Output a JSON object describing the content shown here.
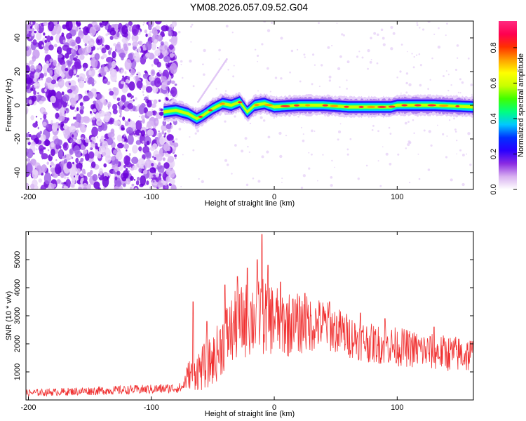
{
  "title": "YM08.2026.057.09.52.G04",
  "chart_data": [
    {
      "type": "heatmap",
      "name": "spectrogram",
      "xlabel": "Height of straight line (km)",
      "ylabel": "Frequency (Hz)",
      "xlim": [
        -202,
        162
      ],
      "ylim": [
        -50,
        50
      ],
      "xticks": [
        -200,
        -100,
        0,
        100
      ],
      "yticks": [
        -40,
        -20,
        0,
        20,
        40
      ],
      "ridge": [
        [
          -90,
          -4
        ],
        [
          -80,
          -3
        ],
        [
          -70,
          -5
        ],
        [
          -63,
          -8
        ],
        [
          -58,
          -6
        ],
        [
          -50,
          -2
        ],
        [
          -42,
          1
        ],
        [
          -35,
          0
        ],
        [
          -28,
          2
        ],
        [
          -22,
          -4
        ],
        [
          -16,
          0
        ],
        [
          -8,
          1
        ],
        [
          0,
          -1
        ],
        [
          20,
          0
        ],
        [
          40,
          0
        ],
        [
          60,
          -1
        ],
        [
          80,
          -1
        ],
        [
          95,
          -1
        ],
        [
          100,
          0
        ],
        [
          130,
          0
        ],
        [
          162,
          -1
        ]
      ],
      "colorbar": {
        "label": "Normalized spectral amplitude",
        "range": [
          0,
          0.95
        ],
        "ticks": [
          "0.0",
          "0.2",
          "0.4",
          "0.6",
          "0.8"
        ],
        "tick_values": [
          0,
          0.2,
          0.4,
          0.6,
          0.8
        ],
        "colors": [
          "#ffffff",
          "#d8b0f0",
          "#8a2be2",
          "#2a00ff",
          "#0030ff",
          "#00c8ff",
          "#00ff80",
          "#40ff00",
          "#c8ff00",
          "#ffff00",
          "#ffa000",
          "#ff3000",
          "#ff0050",
          "#ff2a80"
        ]
      }
    },
    {
      "type": "line",
      "name": "snr",
      "xlabel": "Height of straight line (km)",
      "ylabel": "SNR (10 * v/v)",
      "xlim": [
        -202,
        162
      ],
      "ylim": [
        0,
        6000
      ],
      "xticks": [
        -200,
        -100,
        0,
        100
      ],
      "yticks": [
        1000,
        2000,
        3000,
        4000,
        5000
      ],
      "color": "#f03030",
      "envelope": [
        [
          -202,
          250,
          120
        ],
        [
          -150,
          320,
          150
        ],
        [
          -100,
          380,
          170
        ],
        [
          -75,
          430,
          180
        ],
        [
          -70,
          900,
          500
        ],
        [
          -60,
          1100,
          800
        ],
        [
          -50,
          1400,
          900
        ],
        [
          -40,
          2200,
          1200
        ],
        [
          -30,
          2700,
          1300
        ],
        [
          -20,
          2900,
          1400
        ],
        [
          -10,
          3000,
          1400
        ],
        [
          0,
          2900,
          1300
        ],
        [
          10,
          2700,
          1200
        ],
        [
          20,
          2700,
          1100
        ],
        [
          40,
          2700,
          900
        ],
        [
          60,
          2300,
          800
        ],
        [
          80,
          2000,
          700
        ],
        [
          100,
          1900,
          700
        ],
        [
          130,
          1700,
          650
        ],
        [
          162,
          1600,
          650
        ]
      ],
      "spikes": [
        [
          -66,
          3500
        ],
        [
          -55,
          2800
        ],
        [
          -40,
          4100
        ],
        [
          -30,
          4400
        ],
        [
          -22,
          4700
        ],
        [
          -14,
          5000
        ],
        [
          -10,
          5900
        ],
        [
          -5,
          4800
        ],
        [
          5,
          4200
        ],
        [
          15,
          3600
        ],
        [
          25,
          3800
        ],
        [
          45,
          3500
        ],
        [
          70,
          3100
        ],
        [
          90,
          2900
        ],
        [
          130,
          2600
        ]
      ]
    }
  ]
}
